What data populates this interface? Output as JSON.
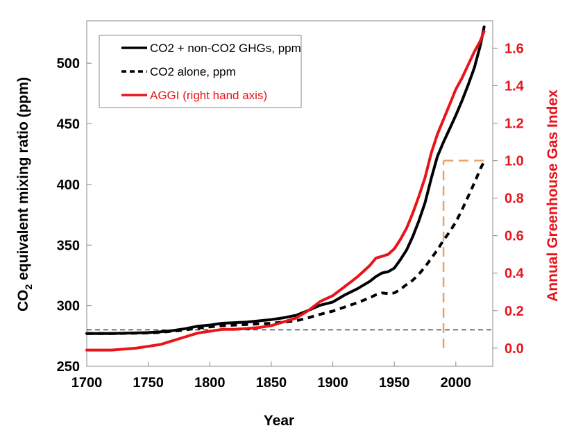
{
  "chart_data": {
    "type": "line",
    "xlabel": "Year",
    "ylabel_prefix": "CO",
    "ylabel_sub": "2",
    "ylabel_suffix": " equivalent mixing ratio (ppm)",
    "y2label": "Annual Greenhouse Gas Index",
    "xlim": [
      1700,
      2030
    ],
    "ylim": [
      250,
      535
    ],
    "y2lim": [
      -0.0967,
      1.7457
    ],
    "x_ticks": [
      1700,
      1750,
      1800,
      1850,
      1900,
      1950,
      2000
    ],
    "x_tick_labels": [
      "1700",
      "1750",
      "1800",
      "1850",
      "1900",
      "1950",
      "2000"
    ],
    "y_ticks": [
      250,
      300,
      350,
      400,
      450,
      500
    ],
    "y_tick_labels": [
      "250",
      "300",
      "350",
      "400",
      "450",
      "500"
    ],
    "y2_ticks": [
      0,
      0.2,
      0.4,
      0.6,
      0.8,
      1.0,
      1.2,
      1.4,
      1.6
    ],
    "y2_tick_labels": [
      "0.0",
      "0.2",
      "0.4",
      "0.6",
      "0.8",
      "1.0",
      "1.2",
      "1.4",
      "1.6"
    ],
    "grid": false,
    "legend_position": "top-left",
    "colors": {
      "black": "#000000",
      "red": "#e8141a",
      "orange": "#f0a060",
      "axis_gray": "#888888"
    },
    "series": [
      {
        "name": "CO2 + non-CO2 GHGs, ppm",
        "axis": "left",
        "style": "solid",
        "color": "#000000",
        "x": [
          1700,
          1720,
          1740,
          1750,
          1760,
          1770,
          1780,
          1790,
          1800,
          1810,
          1820,
          1830,
          1840,
          1850,
          1860,
          1870,
          1880,
          1890,
          1900,
          1910,
          1920,
          1930,
          1935,
          1940,
          1945,
          1950,
          1955,
          1960,
          1965,
          1970,
          1975,
          1980,
          1985,
          1990,
          1995,
          2000,
          2005,
          2010,
          2015,
          2020,
          2023
        ],
        "y": [
          277,
          277,
          277.5,
          277.8,
          278.5,
          279.5,
          281,
          283,
          284,
          285.5,
          286,
          286.5,
          287.5,
          288.5,
          290,
          292,
          296,
          300.5,
          303,
          309,
          314,
          320,
          324,
          327,
          328,
          331,
          338,
          346,
          357,
          370,
          385,
          405,
          423,
          435,
          446,
          457,
          469,
          482,
          496,
          515,
          530
        ]
      },
      {
        "name": "CO2 alone, ppm",
        "axis": "left",
        "style": "dashed",
        "color": "#000000",
        "x": [
          1700,
          1720,
          1740,
          1750,
          1760,
          1770,
          1780,
          1790,
          1800,
          1810,
          1820,
          1830,
          1840,
          1850,
          1860,
          1870,
          1880,
          1890,
          1900,
          1910,
          1920,
          1930,
          1935,
          1940,
          1945,
          1950,
          1955,
          1960,
          1965,
          1970,
          1975,
          1980,
          1985,
          1990,
          1995,
          2000,
          2005,
          2010,
          2015,
          2020,
          2023
        ],
        "y": [
          277,
          277,
          277.3,
          277.5,
          278,
          279,
          280,
          281.5,
          282.5,
          283.5,
          284,
          284.5,
          285,
          285.5,
          286.5,
          287.5,
          290,
          293,
          295.5,
          299,
          302.5,
          306.5,
          309,
          310.5,
          310,
          310.5,
          313.5,
          317.5,
          321,
          326,
          332,
          339,
          346,
          354,
          361,
          369,
          379,
          390,
          401,
          413,
          419
        ]
      },
      {
        "name": "AGGI (right hand axis)",
        "axis": "right",
        "style": "solid",
        "color": "#e8141a",
        "x": [
          1700,
          1720,
          1740,
          1750,
          1760,
          1770,
          1780,
          1790,
          1800,
          1810,
          1820,
          1830,
          1840,
          1850,
          1860,
          1870,
          1880,
          1890,
          1900,
          1910,
          1920,
          1930,
          1935,
          1940,
          1945,
          1950,
          1955,
          1960,
          1965,
          1970,
          1975,
          1980,
          1985,
          1990,
          1995,
          2000,
          2005,
          2010,
          2015,
          2020,
          2023
        ],
        "y": [
          -0.01,
          -0.01,
          0.0,
          0.01,
          0.02,
          0.04,
          0.06,
          0.08,
          0.09,
          0.1,
          0.1,
          0.105,
          0.11,
          0.12,
          0.14,
          0.16,
          0.2,
          0.25,
          0.28,
          0.33,
          0.38,
          0.44,
          0.48,
          0.49,
          0.5,
          0.53,
          0.58,
          0.64,
          0.72,
          0.81,
          0.91,
          1.04,
          1.14,
          1.22,
          1.3,
          1.38,
          1.44,
          1.51,
          1.58,
          1.64,
          1.69
        ]
      }
    ],
    "reference_lines": [
      {
        "name": "pre-industrial baseline",
        "style": "dashed",
        "color": "#000000",
        "axis": "left",
        "y": 280,
        "x_from": 1700,
        "x_to": 2030
      },
      {
        "name": "1990 vertical marker",
        "style": "dashed",
        "color": "#f0a060",
        "axis": "right",
        "x": 1990,
        "y_from": 0,
        "y_to": 1.0
      },
      {
        "name": "AGGI 1.0 horizontal marker",
        "style": "dashed",
        "color": "#f0a060",
        "axis": "right",
        "y": 1.0,
        "x_from": 1990,
        "x_to": 2023
      }
    ]
  }
}
